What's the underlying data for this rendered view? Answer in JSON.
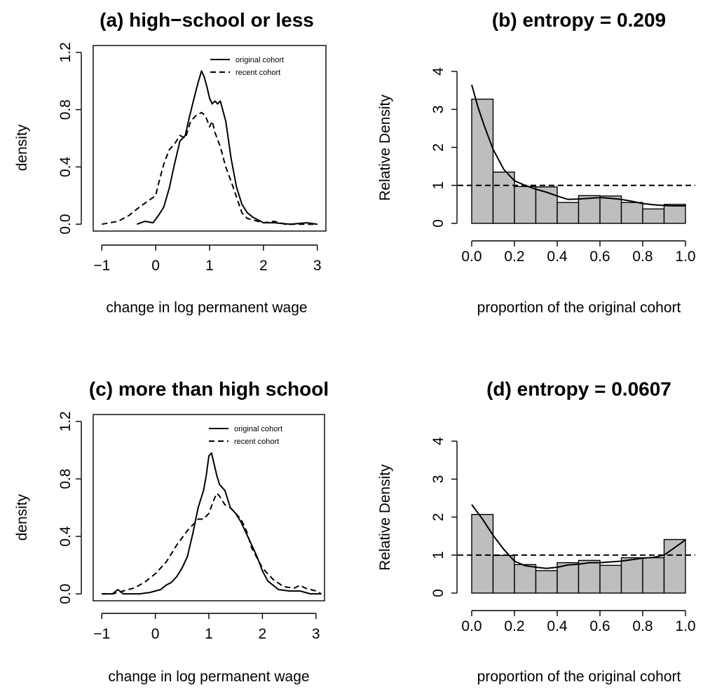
{
  "chart_data": [
    {
      "panel": "a",
      "type": "line",
      "title": "(a) high−school or less",
      "xlabel": "change in log permanent wage",
      "ylabel": "density",
      "xlim": [
        -1,
        3
      ],
      "ylim": [
        0,
        1.2
      ],
      "xticks": [
        "−1",
        "0",
        "1",
        "2",
        "3"
      ],
      "yticks": [
        "0.0",
        "0.4",
        "0.8",
        "1.2"
      ],
      "legend": {
        "position": "top-right",
        "entries": [
          "original cohort",
          "recent cohort"
        ]
      },
      "series": [
        {
          "name": "original cohort",
          "style": "solid",
          "x": [
            -0.35,
            -0.2,
            -0.05,
            0.05,
            0.15,
            0.25,
            0.35,
            0.45,
            0.55,
            0.62,
            0.7,
            0.78,
            0.85,
            0.9,
            0.95,
            1.0,
            1.05,
            1.1,
            1.15,
            1.2,
            1.3,
            1.4,
            1.5,
            1.6,
            1.7,
            1.8,
            1.9,
            2.0,
            2.2,
            2.5,
            2.8,
            3.0
          ],
          "y": [
            0.0,
            0.02,
            0.01,
            0.06,
            0.12,
            0.25,
            0.42,
            0.58,
            0.62,
            0.74,
            0.86,
            0.98,
            1.07,
            1.03,
            0.96,
            0.88,
            0.84,
            0.86,
            0.84,
            0.86,
            0.72,
            0.46,
            0.26,
            0.14,
            0.08,
            0.05,
            0.03,
            0.01,
            0.01,
            0.0,
            0.01,
            0.0
          ]
        },
        {
          "name": "recent cohort",
          "style": "dashed",
          "x": [
            -1.0,
            -0.7,
            -0.5,
            -0.3,
            -0.15,
            0.0,
            0.05,
            0.15,
            0.25,
            0.35,
            0.45,
            0.55,
            0.65,
            0.75,
            0.85,
            0.92,
            1.0,
            1.05,
            1.1,
            1.2,
            1.3,
            1.4,
            1.5,
            1.6,
            1.7,
            1.8,
            2.0,
            2.2,
            2.4,
            3.0
          ],
          "y": [
            0.0,
            0.02,
            0.06,
            0.12,
            0.16,
            0.2,
            0.28,
            0.42,
            0.52,
            0.56,
            0.62,
            0.6,
            0.72,
            0.76,
            0.78,
            0.76,
            0.68,
            0.72,
            0.64,
            0.54,
            0.4,
            0.3,
            0.19,
            0.08,
            0.04,
            0.03,
            0.01,
            0.02,
            0.0,
            0.0
          ]
        }
      ]
    },
    {
      "panel": "b",
      "type": "bar",
      "title": "(b) entropy =  0.209",
      "xlabel": "proportion of the original cohort",
      "ylabel": "Relative Density",
      "xlim": [
        0,
        1
      ],
      "ylim": [
        0,
        4
      ],
      "xticks": [
        "0.0",
        "0.2",
        "0.4",
        "0.6",
        "0.8",
        "1.0"
      ],
      "yticks": [
        "0",
        "1",
        "2",
        "3",
        "4"
      ],
      "bin_edges": [
        0,
        0.1,
        0.2,
        0.3,
        0.4,
        0.5,
        0.6,
        0.7,
        0.8,
        0.9,
        1.0
      ],
      "values": [
        3.27,
        1.35,
        0.97,
        0.96,
        0.55,
        0.73,
        0.72,
        0.55,
        0.38,
        0.5
      ],
      "reference_line": 1,
      "smooth": {
        "x": [
          0.0,
          0.03,
          0.06,
          0.1,
          0.15,
          0.2,
          0.25,
          0.3,
          0.35,
          0.4,
          0.45,
          0.5,
          0.55,
          0.6,
          0.65,
          0.7,
          0.75,
          0.8,
          0.85,
          0.9,
          0.95,
          1.0
        ],
        "y": [
          3.65,
          3.05,
          2.55,
          1.95,
          1.42,
          1.12,
          1.0,
          0.9,
          0.82,
          0.72,
          0.63,
          0.64,
          0.66,
          0.68,
          0.66,
          0.63,
          0.58,
          0.52,
          0.49,
          0.47,
          0.46,
          0.46
        ]
      }
    },
    {
      "panel": "c",
      "type": "line",
      "title": "(c) more than high school",
      "xlabel": "change in log permanent wage",
      "ylabel": "density",
      "xlim": [
        -1,
        3
      ],
      "ylim": [
        0,
        1.2
      ],
      "xticks": [
        "−1",
        "0",
        "1",
        "2",
        "3"
      ],
      "yticks": [
        "0.0",
        "0.4",
        "0.8",
        "1.2"
      ],
      "legend": {
        "position": "top-right",
        "entries": [
          "original cohort",
          "recent cohort"
        ]
      },
      "series": [
        {
          "name": "original cohort",
          "style": "solid",
          "x": [
            -1.0,
            -0.8,
            -0.7,
            -0.6,
            -0.5,
            -0.3,
            -0.1,
            0.0,
            0.1,
            0.2,
            0.3,
            0.4,
            0.5,
            0.6,
            0.7,
            0.8,
            0.9,
            0.95,
            1.0,
            1.05,
            1.1,
            1.15,
            1.2,
            1.3,
            1.4,
            1.5,
            1.6,
            1.7,
            1.8,
            1.9,
            2.0,
            2.1,
            2.2,
            2.3,
            2.5,
            2.7,
            2.9,
            3.1
          ],
          "y": [
            0.0,
            0.0,
            0.03,
            0.0,
            0.0,
            0.0,
            0.01,
            0.02,
            0.03,
            0.06,
            0.08,
            0.12,
            0.18,
            0.26,
            0.42,
            0.6,
            0.72,
            0.82,
            0.96,
            0.98,
            0.9,
            0.82,
            0.76,
            0.72,
            0.6,
            0.56,
            0.5,
            0.42,
            0.34,
            0.26,
            0.16,
            0.09,
            0.06,
            0.03,
            0.02,
            0.02,
            0.0,
            0.0
          ]
        },
        {
          "name": "recent cohort",
          "style": "dashed",
          "x": [
            -1.0,
            -0.8,
            -0.6,
            -0.4,
            -0.2,
            0.0,
            0.2,
            0.4,
            0.6,
            0.8,
            0.9,
            1.0,
            1.1,
            1.15,
            1.2,
            1.3,
            1.4,
            1.5,
            1.6,
            1.7,
            1.8,
            2.0,
            2.2,
            2.4,
            2.6,
            2.7,
            2.8,
            3.0,
            3.1
          ],
          "y": [
            0.0,
            0.0,
            0.02,
            0.04,
            0.08,
            0.14,
            0.22,
            0.34,
            0.44,
            0.52,
            0.52,
            0.56,
            0.66,
            0.7,
            0.68,
            0.62,
            0.6,
            0.56,
            0.52,
            0.44,
            0.32,
            0.18,
            0.1,
            0.05,
            0.04,
            0.06,
            0.04,
            0.02,
            0.0
          ]
        }
      ]
    },
    {
      "panel": "d",
      "type": "bar",
      "title": "(d) entropy =  0.0607",
      "xlabel": "proportion of the original cohort",
      "ylabel": "Relative Density",
      "xlim": [
        0,
        1
      ],
      "ylim": [
        0,
        4
      ],
      "xticks": [
        "0.0",
        "0.2",
        "0.4",
        "0.6",
        "0.8",
        "1.0"
      ],
      "yticks": [
        "0",
        "1",
        "2",
        "3",
        "4"
      ],
      "bin_edges": [
        0,
        0.1,
        0.2,
        0.3,
        0.4,
        0.5,
        0.6,
        0.7,
        0.8,
        0.9,
        1.0
      ],
      "values": [
        2.07,
        0.99,
        0.75,
        0.59,
        0.8,
        0.86,
        0.73,
        0.93,
        0.93,
        1.41
      ],
      "reference_line": 1,
      "smooth": {
        "x": [
          0.0,
          0.05,
          0.1,
          0.15,
          0.2,
          0.25,
          0.3,
          0.35,
          0.4,
          0.45,
          0.5,
          0.55,
          0.6,
          0.65,
          0.7,
          0.75,
          0.8,
          0.85,
          0.9,
          0.95,
          1.0
        ],
        "y": [
          2.33,
          1.95,
          1.52,
          1.15,
          0.84,
          0.72,
          0.68,
          0.65,
          0.68,
          0.74,
          0.76,
          0.8,
          0.8,
          0.82,
          0.84,
          0.88,
          0.92,
          0.94,
          1.0,
          1.2,
          1.4
        ]
      }
    }
  ]
}
